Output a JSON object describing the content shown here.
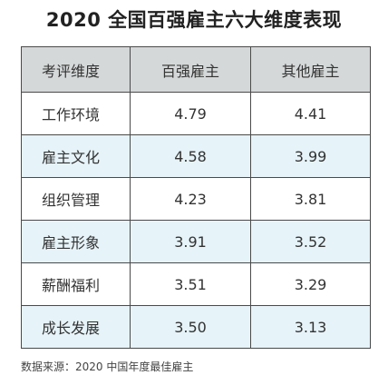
{
  "chart_data": {
    "type": "table",
    "title": "2020 全国百强雇主六大维度表现",
    "columns": [
      "考评维度",
      "百强雇主",
      "其他雇主"
    ],
    "rows": [
      {
        "dimension": "工作环境",
        "top100": "4.79",
        "others": "4.41"
      },
      {
        "dimension": "雇主文化",
        "top100": "4.58",
        "others": "3.99"
      },
      {
        "dimension": "组织管理",
        "top100": "4.23",
        "others": "3.81"
      },
      {
        "dimension": "雇主形象",
        "top100": "3.91",
        "others": "3.52"
      },
      {
        "dimension": "薪酬福利",
        "top100": "3.51",
        "others": "3.29"
      },
      {
        "dimension": "成长发展",
        "top100": "3.50",
        "others": "3.13"
      }
    ],
    "source": "数据来源：2020 中国年度最佳雇主"
  },
  "colors": {
    "header_bg": "#d5d8d9",
    "stripe_bg": "#e6f3f8",
    "border": "#4a4a4a"
  }
}
